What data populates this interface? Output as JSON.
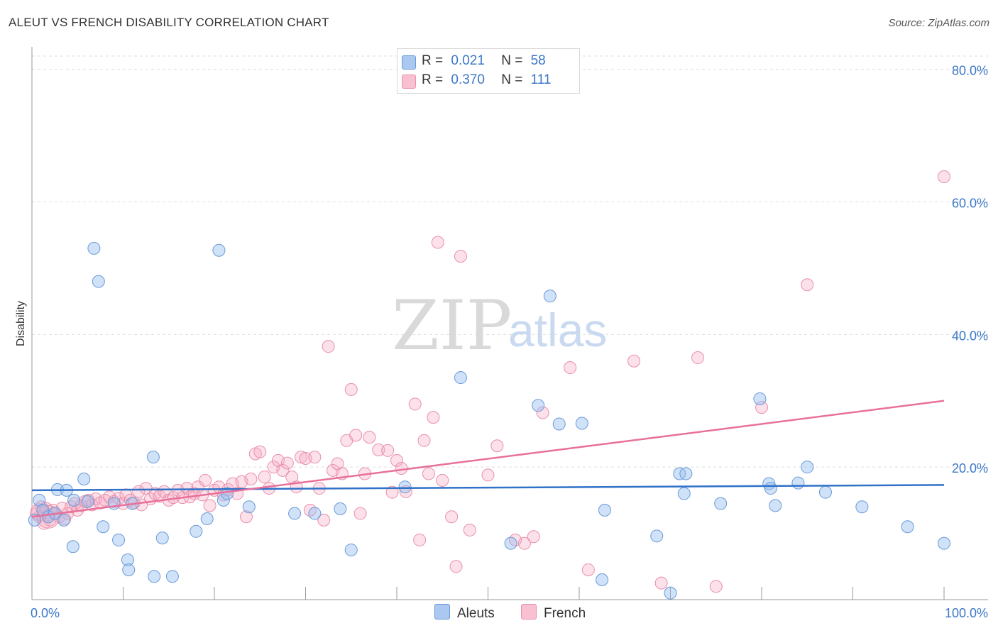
{
  "title": "ALEUT VS FRENCH DISABILITY CORRELATION CHART",
  "source": "Source: ZipAtlas.com",
  "watermark": {
    "zip": "ZIP",
    "atlas": "atlas"
  },
  "stats": [
    {
      "r_label": "R =",
      "r_value": "0.021",
      "n_label": "N =",
      "n_value": "58",
      "color": "#aac8f0",
      "border": "#6a9ad8"
    },
    {
      "r_label": "R =",
      "r_value": "0.370",
      "n_label": "N =",
      "n_value": "111",
      "color": "#f8c0d0",
      "border": "#e890aa"
    }
  ],
  "legend": [
    {
      "label": "Aleuts",
      "color": "#aac8f0",
      "border": "#6a9ad8"
    },
    {
      "label": "French",
      "color": "#f8c0d0",
      "border": "#e890aa"
    }
  ],
  "colors": {
    "aleuts_fill": "rgba(150,190,240,0.45)",
    "aleuts_stroke": "#6a9ad8",
    "aleuts_line": "#2f72c8",
    "french_fill": "rgba(245,170,195,0.35)",
    "french_stroke": "#e890aa",
    "french_line": "#e8709a",
    "grid": "#dddddd",
    "tick_text": "#3c78c8"
  },
  "chart_data": {
    "type": "scatter",
    "title": "ALEUT VS FRENCH DISABILITY CORRELATION CHART",
    "xlabel": "",
    "ylabel": "Disability",
    "xlim": [
      0,
      100
    ],
    "ylim": [
      0,
      82
    ],
    "x_tick_labels": [
      "0.0%",
      "100.0%"
    ],
    "y_ticks": [
      20,
      40,
      60,
      80
    ],
    "y_tick_labels": [
      "20.0%",
      "40.0%",
      "60.0%",
      "80.0%"
    ],
    "grid": true,
    "legend_position": "bottom-center",
    "series": [
      {
        "name": "Aleuts",
        "trend": {
          "x": [
            0,
            100
          ],
          "y": [
            16.5,
            17.3
          ]
        },
        "points": [
          [
            0.3,
            12.0
          ],
          [
            0.8,
            15.0
          ],
          [
            1.2,
            13.5
          ],
          [
            1.8,
            12.5
          ],
          [
            2.5,
            13.0
          ],
          [
            2.8,
            16.6
          ],
          [
            3.5,
            12.0
          ],
          [
            3.8,
            16.5
          ],
          [
            4.5,
            8.0
          ],
          [
            4.6,
            15.0
          ],
          [
            5.7,
            18.2
          ],
          [
            6.1,
            14.8
          ],
          [
            6.8,
            53.0
          ],
          [
            7.3,
            48.0
          ],
          [
            7.8,
            11.0
          ],
          [
            9.0,
            14.5
          ],
          [
            9.5,
            9.0
          ],
          [
            10.5,
            6.0
          ],
          [
            10.6,
            4.5
          ],
          [
            11.0,
            14.5
          ],
          [
            13.3,
            21.5
          ],
          [
            13.4,
            3.5
          ],
          [
            14.3,
            9.3
          ],
          [
            15.4,
            3.5
          ],
          [
            18.0,
            10.3
          ],
          [
            19.2,
            12.2
          ],
          [
            20.5,
            52.7
          ],
          [
            21.0,
            15.0
          ],
          [
            21.4,
            16.0
          ],
          [
            23.8,
            14.0
          ],
          [
            28.8,
            13.0
          ],
          [
            31.0,
            13.0
          ],
          [
            33.8,
            13.7
          ],
          [
            35.0,
            7.5
          ],
          [
            40.9,
            17.0
          ],
          [
            47.0,
            33.5
          ],
          [
            52.5,
            8.5
          ],
          [
            55.5,
            29.3
          ],
          [
            56.8,
            45.8
          ],
          [
            57.8,
            26.5
          ],
          [
            60.3,
            26.6
          ],
          [
            62.5,
            3.0
          ],
          [
            62.8,
            13.5
          ],
          [
            68.5,
            9.6
          ],
          [
            70.0,
            1.0
          ],
          [
            71.0,
            19.0
          ],
          [
            71.5,
            16.0
          ],
          [
            71.7,
            19.0
          ],
          [
            75.5,
            14.5
          ],
          [
            79.8,
            30.3
          ],
          [
            80.8,
            17.5
          ],
          [
            81.0,
            16.8
          ],
          [
            81.5,
            14.2
          ],
          [
            84.0,
            17.6
          ],
          [
            85.0,
            20.0
          ],
          [
            87.0,
            16.2
          ],
          [
            91.0,
            14.0
          ],
          [
            96.0,
            11.0
          ],
          [
            100,
            8.5
          ]
        ]
      },
      {
        "name": "French",
        "trend": {
          "x": [
            0,
            100
          ],
          "y": [
            12.5,
            30.0
          ]
        },
        "points": [
          [
            0.5,
            13.0
          ],
          [
            0.8,
            12.5
          ],
          [
            1.0,
            14.0
          ],
          [
            1.3,
            11.5
          ],
          [
            1.5,
            13.8
          ],
          [
            1.8,
            12.8
          ],
          [
            2.0,
            12.0
          ],
          [
            2.3,
            13.5
          ],
          [
            2.6,
            13.0
          ],
          [
            3.0,
            12.5
          ],
          [
            3.3,
            13.8
          ],
          [
            3.6,
            12.2
          ],
          [
            3.9,
            13.0
          ],
          [
            4.3,
            14.0
          ],
          [
            4.7,
            14.5
          ],
          [
            5.0,
            13.5
          ],
          [
            5.4,
            14.2
          ],
          [
            5.8,
            14.8
          ],
          [
            6.2,
            15.0
          ],
          [
            6.6,
            14.3
          ],
          [
            7.0,
            15.2
          ],
          [
            7.5,
            14.6
          ],
          [
            8.0,
            15.0
          ],
          [
            8.5,
            15.5
          ],
          [
            9.0,
            14.8
          ],
          [
            9.5,
            15.3
          ],
          [
            10.0,
            14.5
          ],
          [
            10.3,
            15.8
          ],
          [
            10.8,
            15.0
          ],
          [
            11.2,
            14.6
          ],
          [
            11.7,
            16.3
          ],
          [
            12.0,
            14.3
          ],
          [
            12.5,
            16.8
          ],
          [
            13.0,
            15.2
          ],
          [
            13.5,
            16.0
          ],
          [
            14.0,
            15.6
          ],
          [
            14.5,
            16.3
          ],
          [
            15.0,
            15.0
          ],
          [
            15.5,
            15.4
          ],
          [
            16.0,
            16.5
          ],
          [
            16.5,
            15.4
          ],
          [
            17.0,
            16.8
          ],
          [
            17.3,
            15.5
          ],
          [
            17.8,
            16.0
          ],
          [
            18.2,
            17.0
          ],
          [
            18.7,
            15.8
          ],
          [
            19.0,
            18.0
          ],
          [
            19.5,
            14.2
          ],
          [
            20.0,
            16.5
          ],
          [
            20.5,
            17.0
          ],
          [
            21.0,
            15.8
          ],
          [
            21.5,
            16.6
          ],
          [
            22.0,
            17.5
          ],
          [
            22.5,
            16.0
          ],
          [
            23.0,
            17.8
          ],
          [
            23.5,
            12.5
          ],
          [
            24.0,
            18.2
          ],
          [
            24.5,
            22.0
          ],
          [
            25.0,
            22.3
          ],
          [
            25.5,
            18.5
          ],
          [
            26.0,
            16.8
          ],
          [
            26.5,
            20.0
          ],
          [
            27.0,
            21.0
          ],
          [
            27.5,
            19.5
          ],
          [
            28.0,
            20.6
          ],
          [
            28.5,
            18.5
          ],
          [
            29.0,
            17.0
          ],
          [
            29.5,
            21.5
          ],
          [
            30.0,
            21.3
          ],
          [
            30.5,
            13.5
          ],
          [
            31.0,
            21.5
          ],
          [
            31.5,
            16.8
          ],
          [
            32.0,
            12.0
          ],
          [
            32.5,
            38.2
          ],
          [
            33.0,
            19.5
          ],
          [
            33.5,
            20.5
          ],
          [
            34.0,
            19.0
          ],
          [
            34.5,
            24.0
          ],
          [
            35.0,
            31.7
          ],
          [
            35.5,
            24.8
          ],
          [
            36.0,
            13.0
          ],
          [
            36.5,
            19.0
          ],
          [
            37.0,
            24.5
          ],
          [
            38.0,
            22.6
          ],
          [
            39.0,
            22.5
          ],
          [
            39.5,
            16.2
          ],
          [
            40.0,
            21.0
          ],
          [
            40.5,
            19.8
          ],
          [
            41.0,
            16.3
          ],
          [
            42.0,
            29.5
          ],
          [
            42.5,
            9.0
          ],
          [
            43.0,
            24.0
          ],
          [
            43.5,
            19.0
          ],
          [
            44.0,
            27.5
          ],
          [
            44.5,
            53.9
          ],
          [
            45.0,
            18.0
          ],
          [
            46.0,
            12.5
          ],
          [
            46.5,
            5.0
          ],
          [
            47.0,
            51.8
          ],
          [
            48.0,
            10.5
          ],
          [
            50.0,
            18.8
          ],
          [
            51.0,
            23.2
          ],
          [
            53.0,
            9.0
          ],
          [
            54.0,
            8.5
          ],
          [
            55.0,
            9.5
          ],
          [
            56.0,
            28.2
          ],
          [
            59.0,
            35.0
          ],
          [
            61.0,
            4.5
          ],
          [
            66.0,
            36.0
          ],
          [
            69.0,
            2.5
          ],
          [
            73.0,
            36.5
          ],
          [
            75.0,
            2.0
          ],
          [
            80.0,
            29.0
          ],
          [
            85.0,
            47.5
          ],
          [
            100.0,
            63.8
          ]
        ]
      }
    ]
  }
}
